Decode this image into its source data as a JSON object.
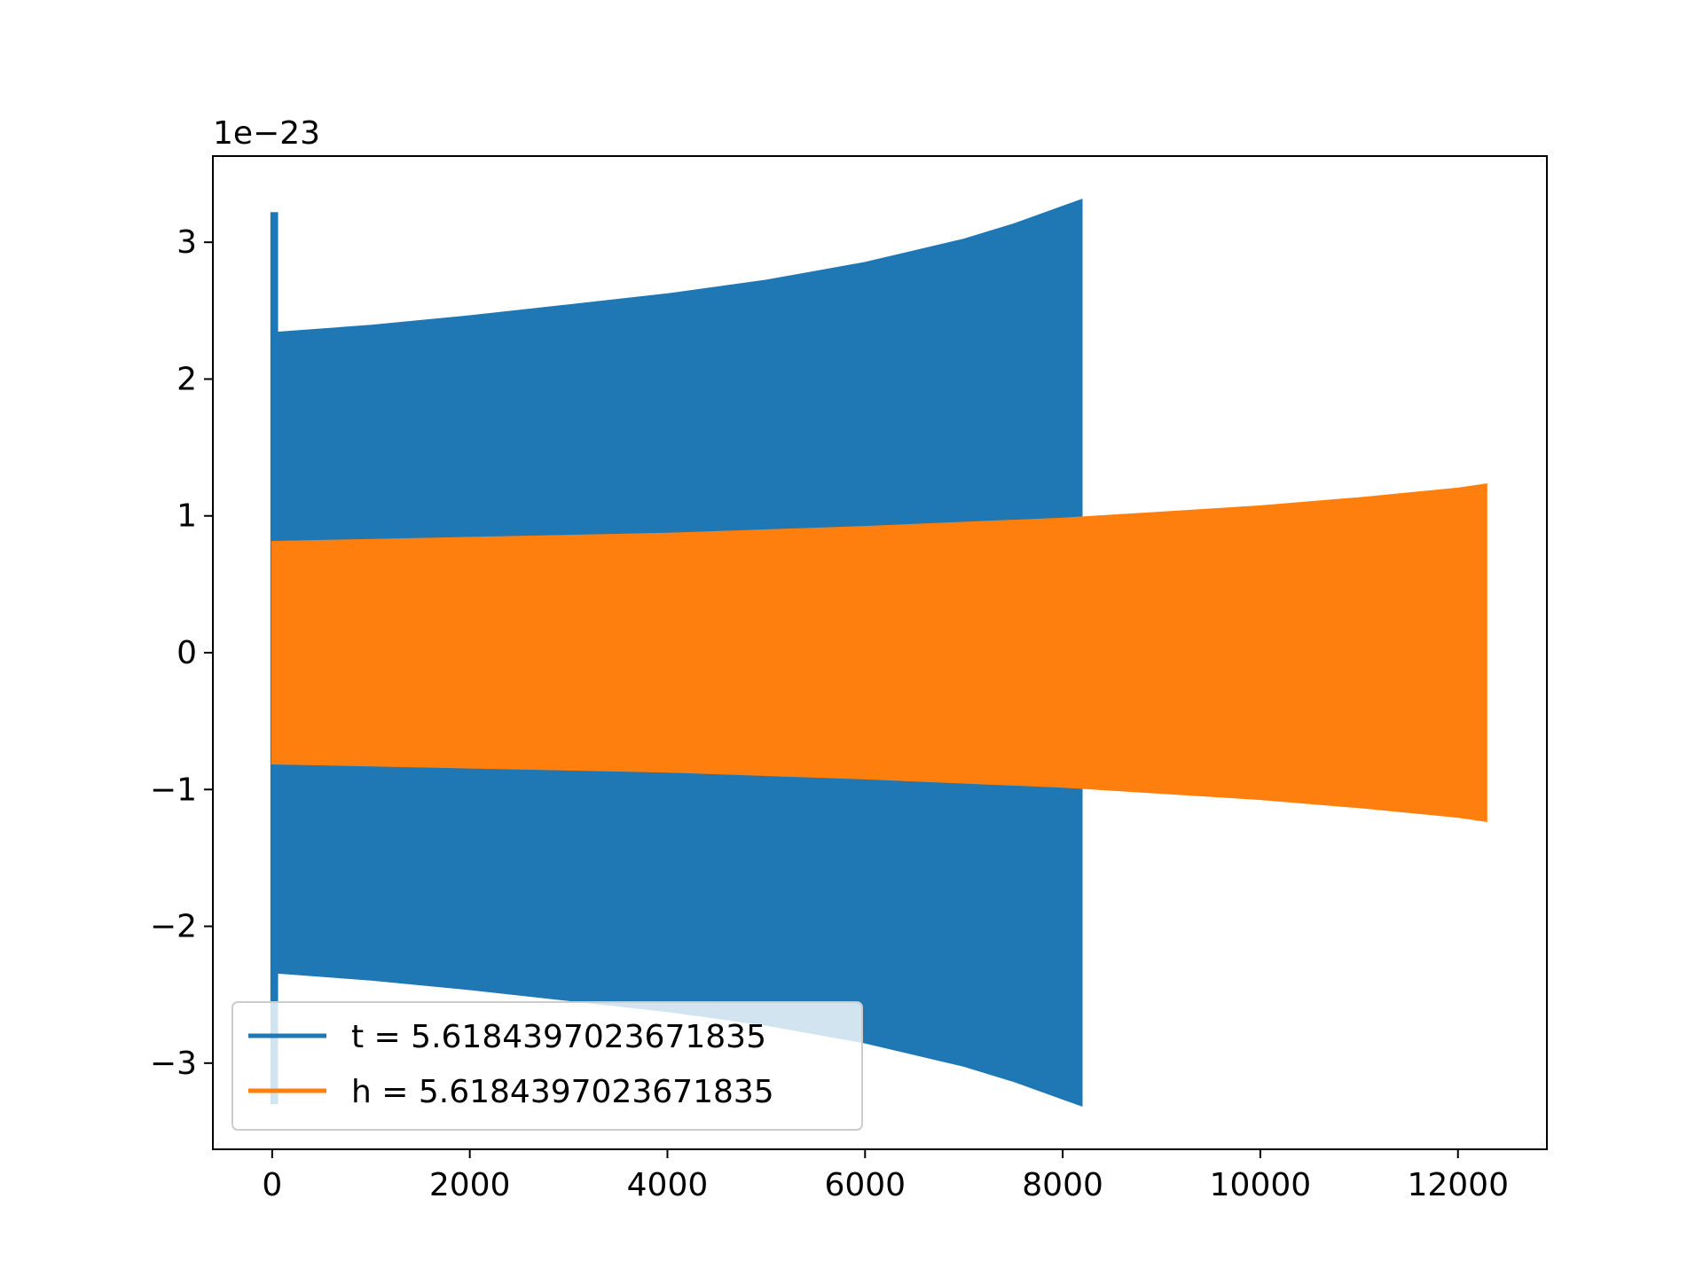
{
  "chart_data": {
    "type": "line",
    "title": "",
    "xlabel": "",
    "ylabel": "",
    "y_offset_label": "1e−23",
    "xlim": [
      -600,
      12900
    ],
    "ylim": [
      -3.63,
      3.63
    ],
    "x_ticks": [
      0,
      2000,
      4000,
      6000,
      8000,
      10000,
      12000
    ],
    "x_tick_labels": [
      "0",
      "2000",
      "4000",
      "6000",
      "8000",
      "10000",
      "12000"
    ],
    "y_ticks": [
      -3,
      -2,
      -1,
      0,
      1,
      2,
      3
    ],
    "y_tick_labels": [
      "−3",
      "−2",
      "−1",
      "0",
      "1",
      "2",
      "3"
    ],
    "grid": false,
    "legend_position": "lower-left",
    "series": [
      {
        "name": "t = 5.6184397023671835",
        "color": "#1f77b4",
        "x_start": 0,
        "x_end": 8192,
        "initial_spike": {
          "x": [
            0,
            60
          ],
          "upper": 3.22,
          "lower": -3.3
        },
        "envelope": {
          "x": [
            60,
            1000,
            2000,
            3000,
            4000,
            5000,
            6000,
            7000,
            7500,
            8000,
            8192
          ],
          "amplitude": [
            2.34,
            2.39,
            2.46,
            2.54,
            2.62,
            2.72,
            2.85,
            3.02,
            3.13,
            3.26,
            3.31
          ]
        }
      },
      {
        "name": "h = 5.6184397023671835",
        "color": "#ff7f0e",
        "x_start": 0,
        "x_end": 12288,
        "envelope": {
          "x": [
            0,
            2000,
            4000,
            6000,
            8000,
            10000,
            11000,
            12000,
            12288
          ],
          "amplitude": [
            0.81,
            0.84,
            0.87,
            0.92,
            0.98,
            1.07,
            1.13,
            1.2,
            1.23
          ]
        }
      }
    ]
  }
}
